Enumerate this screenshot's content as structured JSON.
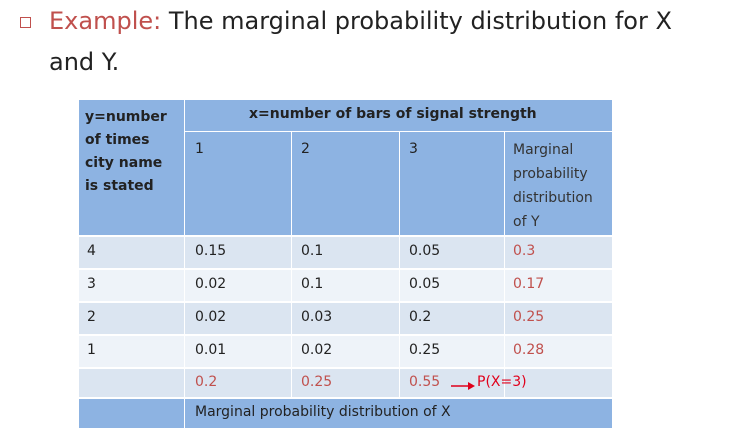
{
  "slide": {
    "example_label": "Example:",
    "title_rest": " The marginal probability distribution for X",
    "title_line2": "and Y."
  },
  "table": {
    "corner_label": [
      "y=number",
      "of times",
      "city name",
      "is stated"
    ],
    "x_header": "x=number of bars of signal strength",
    "x_values": [
      "1",
      "2",
      "3"
    ],
    "marginal_y_header": [
      "Marginal",
      "probability",
      "distribution",
      "of Y"
    ],
    "rows": [
      {
        "y": "4",
        "p": [
          "0.15",
          "0.1",
          "0.05"
        ],
        "marginal": "0.3"
      },
      {
        "y": "3",
        "p": [
          "0.02",
          "0.1",
          "0.05"
        ],
        "marginal": "0.17"
      },
      {
        "y": "2",
        "p": [
          "0.02",
          "0.03",
          "0.2"
        ],
        "marginal": "0.25"
      },
      {
        "y": "1",
        "p": [
          "0.01",
          "0.02",
          "0.25"
        ],
        "marginal": "0.28"
      }
    ],
    "marginal_x": [
      "0.2",
      "0.25",
      "0.55"
    ],
    "px3_note": "P(X=3)",
    "marginal_x_label": "Marginal probability distribution of X"
  },
  "colors": {
    "accent": "#c0504d",
    "note": "#e0001b",
    "header_bg": "#8db3e2"
  }
}
